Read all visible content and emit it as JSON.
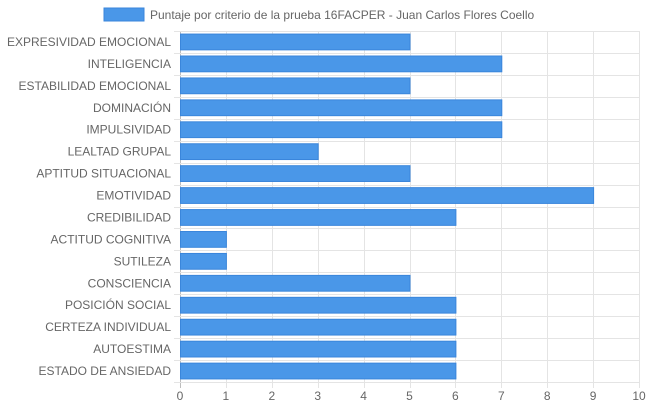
{
  "chart_data": {
    "type": "bar",
    "orientation": "horizontal",
    "categories": [
      "EXPRESIVIDAD EMOCIONAL",
      "INTELIGENCIA",
      "ESTABILIDAD EMOCIONAL",
      "DOMINACIÓN",
      "IMPULSIVIDAD",
      "LEALTAD GRUPAL",
      "APTITUD SITUACIONAL",
      "EMOTIVIDAD",
      "CREDIBILIDAD",
      "ACTITUD COGNITIVA",
      "SUTILEZA",
      "CONSCIENCIA",
      "POSICIÓN SOCIAL",
      "CERTEZA INDIVIDUAL",
      "AUTOESTIMA",
      "ESTADO DE ANSIEDAD"
    ],
    "series": [
      {
        "name": "Puntaje por criterio de la prueba 16FACPER - Juan Carlos Flores Coello",
        "values": [
          5,
          7,
          5,
          7,
          7,
          3,
          5,
          9,
          6,
          1,
          1,
          5,
          6,
          6,
          6,
          6
        ],
        "color": "#4a97e8",
        "border_color": "#3a86db"
      }
    ],
    "xlim": [
      0,
      10
    ],
    "x_ticks": [
      "0",
      "1",
      "2",
      "3",
      "4",
      "5",
      "6",
      "7",
      "8",
      "9",
      "10"
    ],
    "grid": true,
    "grid_color": "#e4e4e4",
    "legend_position": "top-center"
  }
}
